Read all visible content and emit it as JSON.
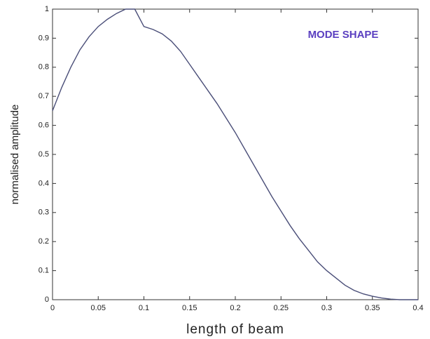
{
  "chart_data": {
    "type": "line",
    "xlabel": "length of beam",
    "ylabel": "normalised amplitude",
    "annotation": "MODE SHAPE",
    "x": [
      0,
      0.01,
      0.02,
      0.03,
      0.04,
      0.05,
      0.06,
      0.07,
      0.08,
      0.09,
      0.1,
      0.11,
      0.12,
      0.13,
      0.14,
      0.15,
      0.16,
      0.17,
      0.18,
      0.19,
      0.2,
      0.21,
      0.22,
      0.23,
      0.24,
      0.25,
      0.26,
      0.27,
      0.28,
      0.29,
      0.3,
      0.31,
      0.32,
      0.33,
      0.34,
      0.35,
      0.36,
      0.37,
      0.38,
      0.39,
      0.4
    ],
    "series": [
      {
        "name": "mode shape",
        "color": "#4a4e78",
        "values": [
          0.65,
          0.73,
          0.8,
          0.86,
          0.905,
          0.94,
          0.965,
          0.985,
          1.0,
          1.0,
          0.94,
          0.93,
          0.915,
          0.89,
          0.855,
          0.81,
          0.765,
          0.72,
          0.675,
          0.625,
          0.575,
          0.52,
          0.465,
          0.41,
          0.355,
          0.305,
          0.255,
          0.21,
          0.17,
          0.13,
          0.1,
          0.075,
          0.05,
          0.032,
          0.02,
          0.012,
          0.006,
          0.002,
          0,
          0,
          0
        ]
      }
    ],
    "xlim": [
      0,
      0.4
    ],
    "ylim": [
      0,
      1
    ],
    "xticks": [
      0,
      0.05,
      0.1,
      0.15,
      0.2,
      0.25,
      0.3,
      0.35,
      0.4
    ],
    "yticks": [
      0,
      0.1,
      0.2,
      0.3,
      0.4,
      0.5,
      0.6,
      0.7,
      0.8,
      0.9,
      1
    ],
    "annotation_color": "#5a3fc0"
  }
}
